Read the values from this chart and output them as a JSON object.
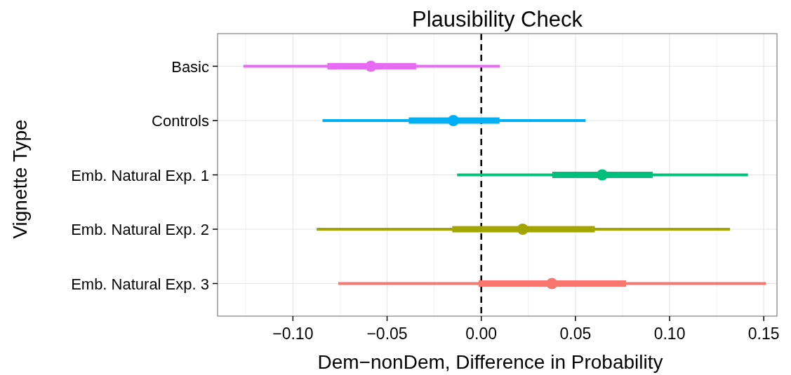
{
  "chart_data": {
    "type": "scatter",
    "orientation": "horizontal",
    "title": "Plausibility Check",
    "xlabel": "Dem−nonDem, Difference in Probability",
    "ylabel": "Vignette Type",
    "categories": [
      "Basic",
      "Controls",
      "Emb. Natural Exp. 1",
      "Emb. Natural Exp. 2",
      "Emb. Natural Exp. 3"
    ],
    "xlim": [
      -0.14,
      0.157
    ],
    "xticks": [
      {
        "value": -0.1,
        "label": "−0.10"
      },
      {
        "value": -0.05,
        "label": "−0.05"
      },
      {
        "value": 0,
        "label": "0.00"
      },
      {
        "value": 0.05,
        "label": "0.05"
      },
      {
        "value": 0.1,
        "label": "0.10"
      },
      {
        "value": 0.15,
        "label": "0.15"
      }
    ],
    "grid": true,
    "ref_lines": [
      {
        "axis": "x",
        "value": 0,
        "color": "#000000",
        "line_style": "dashed"
      }
    ],
    "series": [
      {
        "type": "bar",
        "base": [
          -0.1263,
          -0.0843,
          -0.0128,
          -0.0874,
          -0.0759
        ],
        "values": [
          0.1362,
          0.1397,
          0.1544,
          0.2195,
          0.2271
        ],
        "colors": [
          "#e76bf3",
          "#00b0f6",
          "#00bf7d",
          "#a3a500",
          "#f8766d"
        ]
      },
      {
        "type": "bar",
        "base": [
          -0.0817,
          -0.0385,
          0.0377,
          -0.0154,
          -0.0014
        ],
        "values": [
          0.0471,
          0.0482,
          0.0533,
          0.0757,
          0.0783
        ],
        "colors": [
          "#e76bf3",
          "#00b0f6",
          "#00bf7d",
          "#a3a500",
          "#f8766d"
        ]
      },
      {
        "marker": "circle",
        "values": [
          -0.0586,
          -0.0148,
          0.0642,
          0.022,
          0.0375
        ],
        "colors": [
          "#e76bf3",
          "#00b0f6",
          "#00bf7d",
          "#a3a500",
          "#f8766d"
        ]
      }
    ]
  }
}
